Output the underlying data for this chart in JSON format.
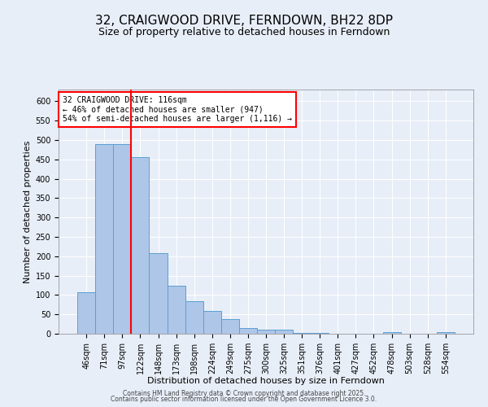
{
  "title": "32, CRAIGWOOD DRIVE, FERNDOWN, BH22 8DP",
  "subtitle": "Size of property relative to detached houses in Ferndown",
  "xlabel": "Distribution of detached houses by size in Ferndown",
  "ylabel": "Number of detached properties",
  "categories": [
    "46sqm",
    "71sqm",
    "97sqm",
    "122sqm",
    "148sqm",
    "173sqm",
    "198sqm",
    "224sqm",
    "249sqm",
    "275sqm",
    "300sqm",
    "325sqm",
    "351sqm",
    "376sqm",
    "401sqm",
    "427sqm",
    "452sqm",
    "478sqm",
    "503sqm",
    "528sqm",
    "554sqm"
  ],
  "values": [
    107,
    490,
    490,
    455,
    208,
    124,
    83,
    58,
    38,
    14,
    10,
    10,
    3,
    3,
    1,
    1,
    0,
    5,
    0,
    0,
    5
  ],
  "bar_color": "#aec6e8",
  "bar_edge_color": "#5a9fd4",
  "vline_x": 2.5,
  "vline_color": "red",
  "annotation_text": "32 CRAIGWOOD DRIVE: 116sqm\n← 46% of detached houses are smaller (947)\n54% of semi-detached houses are larger (1,116) →",
  "annotation_box_color": "white",
  "annotation_box_edge_color": "red",
  "ylim": [
    0,
    630
  ],
  "yticks": [
    0,
    50,
    100,
    150,
    200,
    250,
    300,
    350,
    400,
    450,
    500,
    550,
    600
  ],
  "background_color": "#e8eef8",
  "footer_line1": "Contains HM Land Registry data © Crown copyright and database right 2025.",
  "footer_line2": "Contains public sector information licensed under the Open Government Licence 3.0.",
  "title_fontsize": 11,
  "subtitle_fontsize": 9,
  "xlabel_fontsize": 8,
  "ylabel_fontsize": 8,
  "tick_fontsize": 7,
  "annotation_fontsize": 7,
  "footer_fontsize": 5.5
}
